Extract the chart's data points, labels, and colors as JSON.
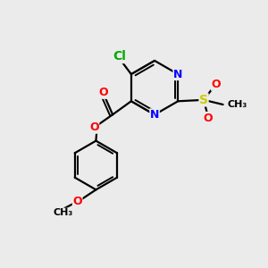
{
  "background_color": "#ebebeb",
  "bond_color": "#000000",
  "bond_width": 1.6,
  "atom_colors": {
    "Cl": "#00aa00",
    "N": "#0000ff",
    "O": "#ff0000",
    "S": "#cccc00",
    "C": "#000000"
  },
  "font_size": 9,
  "figsize": [
    3.0,
    3.0
  ],
  "dpi": 100
}
